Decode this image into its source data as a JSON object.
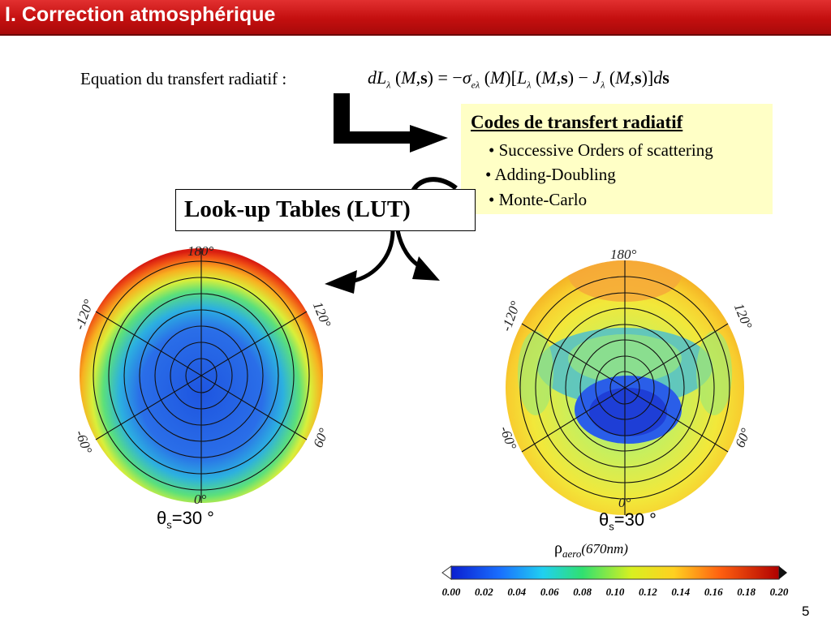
{
  "slide": {
    "title": "I. Correction atmosphérique",
    "page_number": "5",
    "accent_color": "#c40f0f"
  },
  "equation": {
    "label": "Equation du transfert radiatif :",
    "dL": "dL",
    "lambda": "λ",
    "M": "M",
    "s": "s",
    "sigma": "σ",
    "e": "e",
    "J": "J",
    "ds_d": "d"
  },
  "codes": {
    "title": "Codes de transfert radiatif",
    "items": [
      "• Successive Orders of scattering",
      "• Adding-Doubling",
      "• Monte-Carlo"
    ],
    "background": "#ffffc6"
  },
  "lut": {
    "label": "Look-up Tables (LUT)"
  },
  "plots": {
    "left": {
      "angles": {
        "top": "180°",
        "bottom": "0°",
        "upper_left": "-120°",
        "upper_right": "120°",
        "lower_left": "-60°",
        "lower_right": "60°"
      },
      "theta_symbol": "θ",
      "theta_sub": "s",
      "theta_value": "=30 °"
    },
    "right": {
      "angles": {
        "top": "180°",
        "bottom": "0°",
        "upper_left": "-120°",
        "upper_right": "120°",
        "lower_left": "-60°",
        "lower_right": "60°"
      },
      "theta_symbol": "θ",
      "theta_sub": "s",
      "theta_value": "=30 °"
    }
  },
  "colorbar": {
    "rho": "ρ",
    "rho_sub": "aero",
    "wavelength": "(670nm)",
    "ticks": [
      "0.00",
      "0.02",
      "0.04",
      "0.06",
      "0.08",
      "0.10",
      "0.12",
      "0.14",
      "0.16",
      "0.18",
      "0.20"
    ]
  }
}
